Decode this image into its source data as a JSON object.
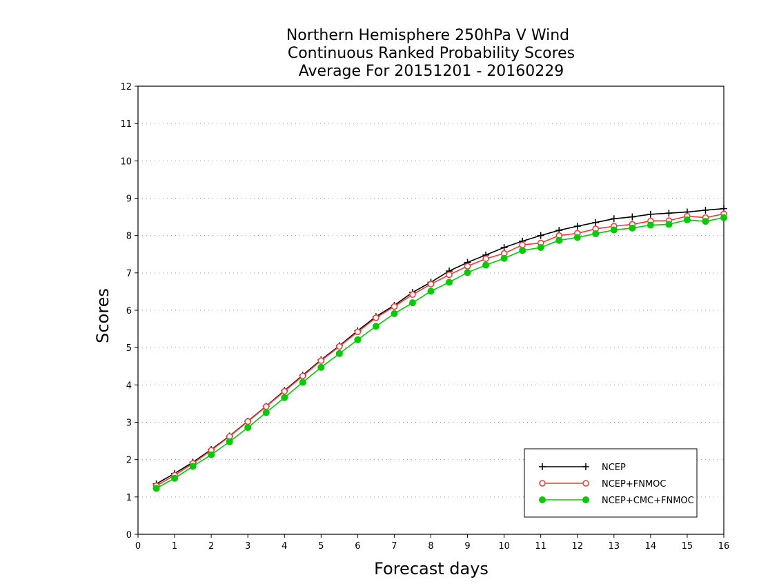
{
  "chart_data": {
    "type": "line",
    "title": [
      "Northern Hemisphere 250hPa V Wind",
      "Continuous Ranked Probability Scores",
      "Average For 20151201 - 20160229"
    ],
    "xlabel": "Forecast days",
    "ylabel": "Scores",
    "xlim": [
      0,
      16
    ],
    "ylim": [
      0,
      12
    ],
    "xticks": [
      "0",
      "1",
      "2",
      "3",
      "4",
      "5",
      "6",
      "7",
      "8",
      "9",
      "10",
      "11",
      "12",
      "13",
      "14",
      "15",
      "16"
    ],
    "yticks": [
      "0",
      "1",
      "2",
      "3",
      "4",
      "5",
      "6",
      "7",
      "8",
      "9",
      "10",
      "11",
      "12"
    ],
    "grid": true,
    "legend_position": "bottom-right",
    "x": [
      0.5,
      1,
      1.5,
      2,
      2.5,
      3,
      3.5,
      4,
      4.5,
      5,
      5.5,
      6,
      6.5,
      7,
      7.5,
      8,
      8.5,
      9,
      9.5,
      10,
      10.5,
      11,
      11.5,
      12,
      12.5,
      13,
      13.5,
      14,
      14.5,
      15,
      15.5,
      16
    ],
    "series": [
      {
        "name": "NCEP",
        "color": "#000000",
        "marker": "plus",
        "values": [
          1.35,
          1.63,
          1.93,
          2.27,
          2.63,
          3.03,
          3.43,
          3.85,
          4.26,
          4.67,
          5.05,
          5.45,
          5.83,
          6.13,
          6.48,
          6.75,
          7.05,
          7.28,
          7.48,
          7.68,
          7.85,
          8.0,
          8.14,
          8.25,
          8.35,
          8.45,
          8.5,
          8.57,
          8.6,
          8.63,
          8.68,
          8.72
        ]
      },
      {
        "name": "NCEP+FNMOC",
        "color": "#ff3333",
        "marker": "open-circle",
        "values": [
          1.3,
          1.58,
          1.9,
          2.25,
          2.62,
          3.02,
          3.42,
          3.83,
          4.24,
          4.65,
          5.03,
          5.42,
          5.8,
          6.1,
          6.42,
          6.7,
          6.95,
          7.18,
          7.38,
          7.52,
          7.75,
          7.8,
          8.0,
          8.06,
          8.18,
          8.25,
          8.3,
          8.39,
          8.4,
          8.52,
          8.48,
          8.58
        ]
      },
      {
        "name": "NCEP+CMC+FNMOC",
        "color": "#00cc00",
        "marker": "filled-circle",
        "values": [
          1.23,
          1.5,
          1.82,
          2.13,
          2.48,
          2.86,
          3.26,
          3.66,
          4.07,
          4.47,
          4.84,
          5.21,
          5.57,
          5.91,
          6.2,
          6.51,
          6.75,
          7.01,
          7.21,
          7.39,
          7.6,
          7.68,
          7.87,
          7.95,
          8.05,
          8.15,
          8.2,
          8.28,
          8.3,
          8.42,
          8.38,
          8.48
        ]
      }
    ]
  }
}
